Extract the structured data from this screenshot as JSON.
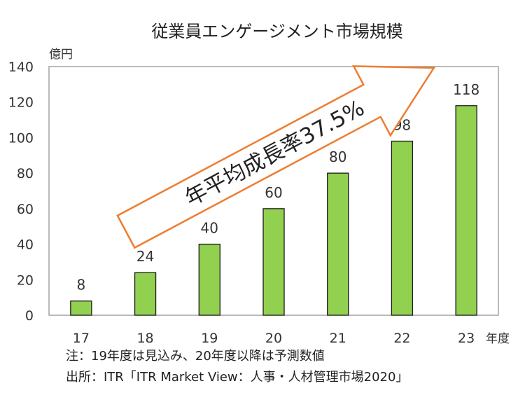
{
  "chart_data": {
    "type": "bar",
    "title": "従業員エンゲージメント市場規模",
    "ylabel": "億円",
    "xlabel": "年度",
    "categories": [
      "17",
      "18",
      "19",
      "20",
      "21",
      "22",
      "23"
    ],
    "values": [
      8,
      24,
      40,
      60,
      80,
      98,
      118
    ],
    "ylim": [
      0,
      140
    ],
    "yticks": [
      0,
      20,
      40,
      60,
      80,
      100,
      120,
      140
    ],
    "grid": false,
    "bar_color": "#92d050",
    "annotation": {
      "text": "年平均成長率37.5%",
      "arrow_color": "#ed7d31"
    }
  },
  "footnotes": {
    "note": "注：19年度は見込み、20年度以降は予測数値",
    "source": "出所：ITR「ITR Market View：人事・人材管理市場2020」"
  }
}
